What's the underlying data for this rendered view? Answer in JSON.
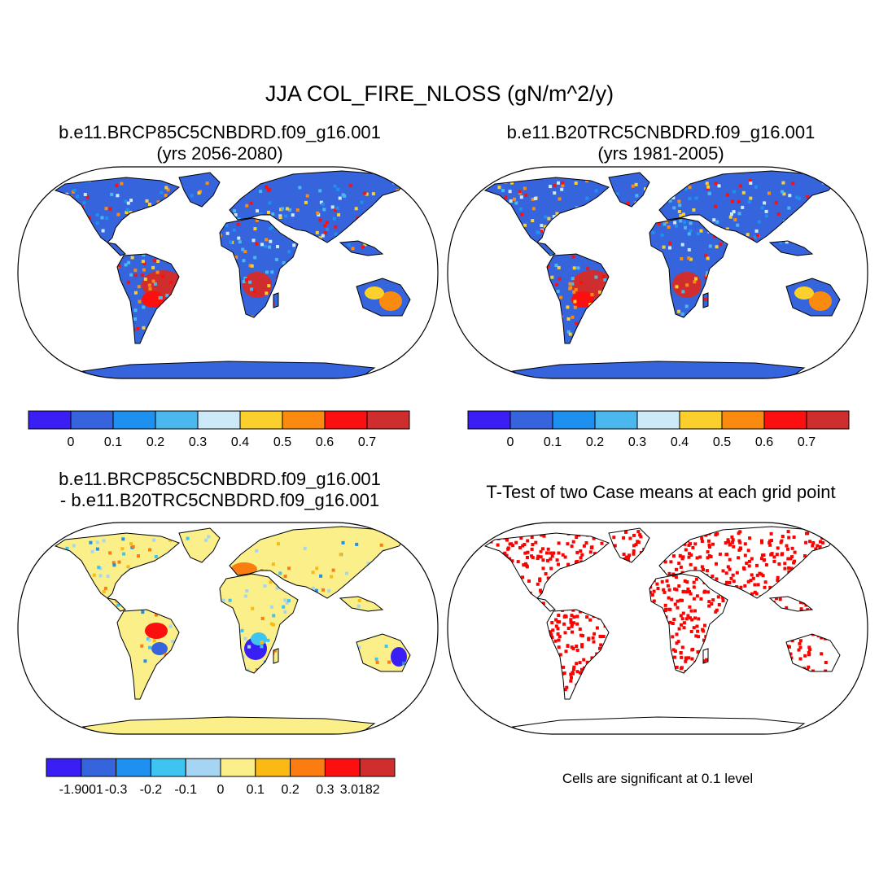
{
  "title": "JJA COL_FIRE_NLOSS (gN/m^2/y)",
  "panels": [
    {
      "title_lines": [
        "b.e11.BRCP85C5CNBDRD.f09_g16.001",
        "(yrs 2056-2080)"
      ],
      "style": "abs"
    },
    {
      "title_lines": [
        "b.e11.B20TRC5CNBDRD.f09_g16.001",
        "(yrs 1981-2005)"
      ],
      "style": "abs"
    },
    {
      "title_lines": [
        "b.e11.BRCP85C5CNBDRD.f09_g16.001",
        "- b.e11.B20TRC5CNBDRD.f09_g16.001"
      ],
      "style": "diff"
    },
    {
      "title_lines": [
        "T-Test of two Case means at each grid point"
      ],
      "style": "ttest"
    }
  ],
  "colorbars": {
    "absolute": {
      "colors": [
        "#3a1ff4",
        "#3664dc",
        "#1e90f0",
        "#4ab8ee",
        "#cde9f7",
        "#fbcf2c",
        "#fb8a10",
        "#fb0f0f",
        "#d02e2e"
      ],
      "labels": [
        "0",
        "0.1",
        "0.2",
        "0.3",
        "0.4",
        "0.5",
        "0.6",
        "0.7"
      ]
    },
    "difference": {
      "colors": [
        "#3a1ff4",
        "#3664dc",
        "#1e90f0",
        "#3ec4f0",
        "#a5d5f2",
        "#fbef8a",
        "#fbb916",
        "#fb7c10",
        "#fb0f0f",
        "#d02e2e"
      ],
      "labels": [
        "-1.9001",
        "-0.3",
        "-0.2",
        "-0.1",
        "0",
        "0.1",
        "0.2",
        "0.3",
        "3.0182"
      ]
    }
  },
  "note": "Cells are significant at 0.1 level"
}
